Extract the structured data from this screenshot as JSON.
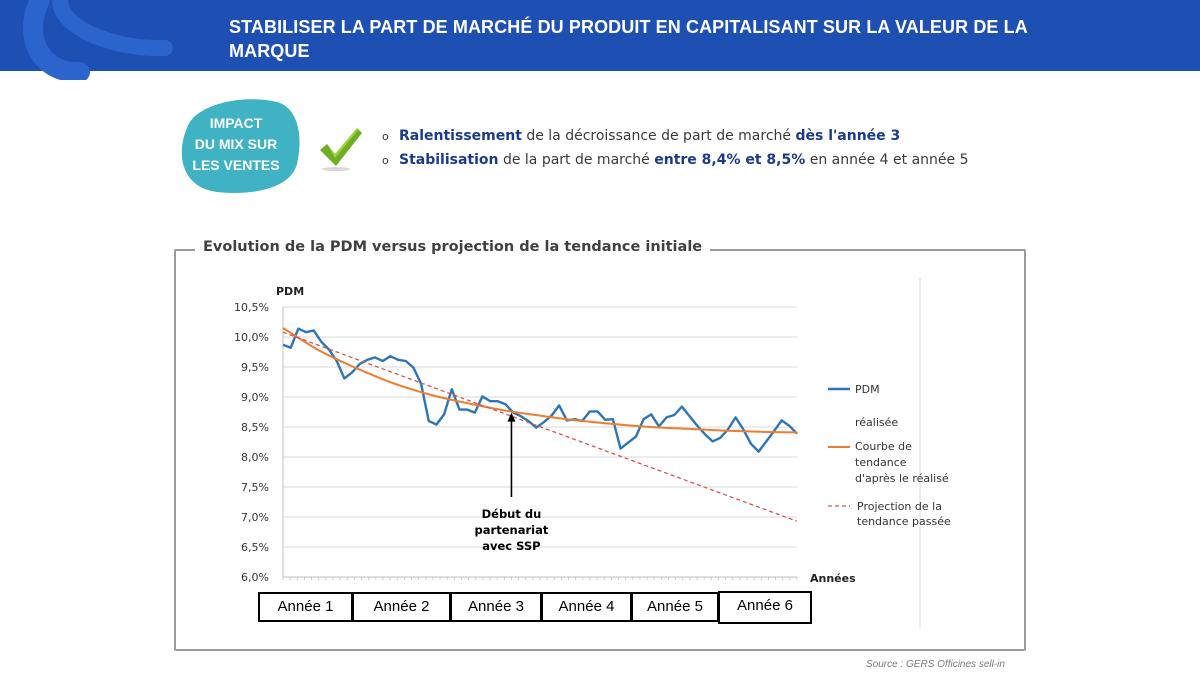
{
  "header": {
    "title": "STABILISER LA PART DE MARCHÉ DU PRODUIT EN CAPITALISANT SUR LA VALEUR DE LA MARQUE"
  },
  "impact": {
    "line1": "IMPACT",
    "line2": "DU MIX SUR",
    "line3": "LES VENTES"
  },
  "bullets": [
    {
      "bold1": "Ralentissement",
      "text1": " de la décroissance de part de marché ",
      "bold2": "dès l'année 3",
      "text2": ""
    },
    {
      "bold1": "Stabilisation",
      "text1": " de la part de marché ",
      "bold2": "entre 8,4% et 8,5%",
      "text2": " en année 4 et année 5"
    }
  ],
  "colors": {
    "header": "#1e50b4",
    "blob": "#3fb3c3",
    "pdm": "#2e75b6",
    "trend": "#ed7d31",
    "projection": "#d9534f",
    "bullet_bold": "#1b3a8a"
  },
  "chart_data": {
    "type": "line",
    "title": "Evolution de la PDM versus projection de la tendance initiale",
    "ylabel": "PDM",
    "xlabel": "Années",
    "ylim": [
      6.0,
      10.5
    ],
    "yticks": [
      "10,5%",
      "10,0%",
      "9,5%",
      "9,0%",
      "8,5%",
      "8,0%",
      "7,5%",
      "7,0%",
      "6,5%",
      "6,0%"
    ],
    "x_range": [
      1,
      73
    ],
    "x_unit": "mois",
    "grid": true,
    "legend_position": "right",
    "legend": {
      "pdm": "PDM",
      "pdm2": "réalisée",
      "trend1": "Courbe de",
      "trend2": "tendance",
      "trend3": "d'après le réalisé",
      "proj1": "Projection de la",
      "proj2": "tendance passée"
    },
    "series": [
      {
        "name": "PDM réalisée",
        "style": "solid",
        "values": [
          9.87,
          9.82,
          10.14,
          10.08,
          10.11,
          9.92,
          9.79,
          9.6,
          9.31,
          9.41,
          9.55,
          9.62,
          9.66,
          9.6,
          9.68,
          9.62,
          9.6,
          9.49,
          9.22,
          8.6,
          8.54,
          8.71,
          9.13,
          8.79,
          8.79,
          8.74,
          9.01,
          8.93,
          8.93,
          8.88,
          8.74,
          8.68,
          8.6,
          8.49,
          8.58,
          8.69,
          8.86,
          8.61,
          8.63,
          8.6,
          8.76,
          8.76,
          8.62,
          8.63,
          8.14,
          8.24,
          8.34,
          8.63,
          8.71,
          8.51,
          8.66,
          8.7,
          8.84,
          8.68,
          8.52,
          8.38,
          8.26,
          8.32,
          8.46,
          8.66,
          8.46,
          8.22,
          8.09,
          8.26,
          8.43,
          8.61,
          8.52,
          8.39
        ]
      },
      {
        "name": "Courbe de tendance d'après le réalisé",
        "style": "solid",
        "values": [
          10.15,
          9.77,
          9.48,
          9.23,
          9.04,
          8.9,
          8.78,
          8.69,
          8.61,
          8.55,
          8.5,
          8.47,
          8.44,
          8.42,
          8.41
        ]
      },
      {
        "name": "Projection de la tendance passée",
        "style": "dashed",
        "values": [
          10.08,
          6.93
        ]
      }
    ],
    "annotation": {
      "line1": "Début du",
      "line2": "partenariat",
      "line3": "avec SSP",
      "target": [
        33,
        8.74
      ]
    },
    "periods": [
      "Année 1",
      "Année 2",
      "Année 3",
      "Année 4",
      "Année 5",
      "Année 6"
    ]
  },
  "source": "Source : GERS Officines sell-in"
}
